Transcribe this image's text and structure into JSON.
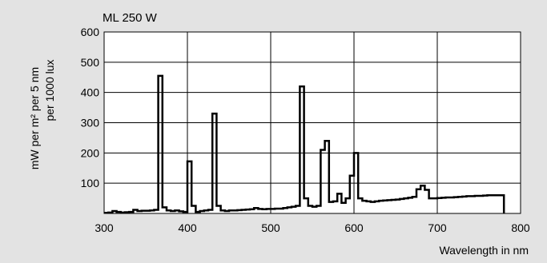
{
  "chart_data": {
    "type": "line",
    "title": "ML 250 W",
    "xlabel": "Wavelength in nm",
    "ylabel_line1": "mW per m² per 5 nm",
    "ylabel_line2": "per 1000 lux",
    "xlim": [
      300,
      780
    ],
    "ylim": [
      0,
      600
    ],
    "x_ticks": [
      300,
      400,
      500,
      600,
      700,
      800
    ],
    "y_ticks": [
      100,
      200,
      300,
      400,
      500,
      600
    ],
    "grid": true,
    "step": 5,
    "series": [
      {
        "x": [
          300,
          305,
          310,
          315,
          320,
          325,
          330,
          335,
          340,
          345,
          350,
          355,
          360,
          365,
          370,
          375,
          380,
          385,
          390,
          395,
          400,
          405,
          410,
          415,
          420,
          425,
          430,
          435,
          440,
          445,
          450,
          455,
          460,
          465,
          470,
          475,
          480,
          485,
          490,
          495,
          500,
          505,
          510,
          515,
          520,
          525,
          530,
          535,
          540,
          545,
          550,
          555,
          560,
          565,
          570,
          575,
          580,
          585,
          590,
          595,
          600,
          605,
          610,
          615,
          620,
          625,
          630,
          635,
          640,
          645,
          650,
          655,
          660,
          665,
          670,
          675,
          680,
          685,
          690,
          695,
          700,
          705,
          710,
          715,
          720,
          725,
          730,
          735,
          740,
          745,
          750,
          755,
          760,
          765,
          770,
          775
        ],
        "values": [
          2,
          3,
          8,
          5,
          3,
          4,
          5,
          12,
          8,
          9,
          9,
          10,
          12,
          455,
          20,
          10,
          8,
          10,
          7,
          5,
          172,
          25,
          5,
          8,
          10,
          12,
          330,
          25,
          10,
          8,
          10,
          10,
          11,
          12,
          13,
          14,
          18,
          15,
          14,
          15,
          15,
          16,
          16,
          18,
          20,
          22,
          25,
          420,
          50,
          25,
          22,
          25,
          210,
          240,
          38,
          40,
          65,
          35,
          50,
          125,
          200,
          50,
          42,
          40,
          38,
          40,
          42,
          43,
          44,
          45,
          46,
          48,
          50,
          52,
          55,
          80,
          92,
          78,
          50,
          50,
          51,
          52,
          53,
          53,
          54,
          55,
          56,
          57,
          57,
          58,
          58,
          59,
          60,
          60,
          60,
          60
        ]
      }
    ]
  }
}
